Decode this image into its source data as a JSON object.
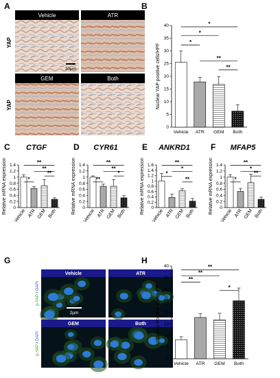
{
  "panel_labels": [
    "A",
    "B",
    "C",
    "D",
    "E",
    "F",
    "G",
    "H"
  ],
  "panel_a": {
    "tiles": [
      "Vehicle",
      "ATR",
      "GEM",
      "Both"
    ],
    "row_label": "YAP",
    "scale_bar": "30μm"
  },
  "panel_g": {
    "tiles": [
      "Vehicle",
      "ATR",
      "GEM",
      "Both"
    ],
    "side_label_green": "p-YAP",
    "side_label_sep": " / ",
    "side_label_blue": "DAPI",
    "scale_bar": "2μm"
  },
  "colors": {
    "atr": "#a9a9a9",
    "vehicle": "#ffffff",
    "ihc_bg": "#ead9cf",
    "if_bg": "#06121a",
    "tile_header": "#1a1a8c"
  },
  "chart_data": [
    {
      "id": "B",
      "type": "bar",
      "categories": [
        "Vehicle",
        "ATR",
        "GEM",
        "Both"
      ],
      "values": [
        25.5,
        17.8,
        16.8,
        6.3
      ],
      "errors": [
        4.5,
        1.8,
        3.0,
        2.5
      ],
      "ylabel": "Nuclear YAP positive cells/HPF",
      "ylim": [
        0,
        40
      ],
      "yticks": [
        0,
        5,
        10,
        15,
        20,
        25,
        30,
        35,
        40
      ],
      "fills": [
        "white",
        "gray",
        "hstripe",
        "dots"
      ],
      "significance": [
        {
          "from": 0,
          "to": 1,
          "label": "*"
        },
        {
          "from": 0,
          "to": 2,
          "label": "*"
        },
        {
          "from": 0,
          "to": 3,
          "label": "*"
        },
        {
          "from": 1,
          "to": 3,
          "label": "**"
        },
        {
          "from": 2,
          "to": 3,
          "label": "**"
        }
      ]
    },
    {
      "id": "C",
      "type": "bar",
      "title": "CTGF",
      "categories": [
        "Vehicle",
        "ATR",
        "GEM",
        "Both"
      ],
      "values": [
        1.0,
        0.63,
        0.72,
        0.27
      ],
      "errors": [
        0.08,
        0.06,
        0.2,
        0.05
      ],
      "ylabel": "Relative mRNA expression",
      "ylim": [
        0,
        1.4
      ],
      "yticks": [
        0,
        0.2,
        0.4,
        0.6,
        0.8,
        1,
        1.2,
        1.4
      ],
      "significance": [
        {
          "from": 0,
          "to": 1,
          "label": "*"
        },
        {
          "from": 0,
          "to": 3,
          "label": "**"
        },
        {
          "from": 1,
          "to": 3,
          "label": "**"
        },
        {
          "from": 2,
          "to": 3,
          "label": "**"
        }
      ]
    },
    {
      "id": "D",
      "type": "bar",
      "title": "CYR61",
      "categories": [
        "Vehicle",
        "ATR",
        "GEM",
        "Both"
      ],
      "values": [
        1.0,
        0.7,
        0.7,
        0.32
      ],
      "errors": [
        0.04,
        0.07,
        0.22,
        0.07
      ],
      "ylabel": "Relative mRNA expression",
      "ylim": [
        0,
        1.4
      ],
      "yticks": [
        0,
        0.2,
        0.4,
        0.6,
        0.8,
        1,
        1.2,
        1.4
      ],
      "significance": [
        {
          "from": 0,
          "to": 1,
          "label": "**"
        },
        {
          "from": 0,
          "to": 3,
          "label": "**"
        },
        {
          "from": 1,
          "to": 3,
          "label": "**"
        },
        {
          "from": 2,
          "to": 3,
          "label": "*"
        }
      ]
    },
    {
      "id": "E",
      "type": "bar",
      "title": "ANKRD1",
      "categories": [
        "Vehicle",
        "ATR",
        "GEM",
        "Both"
      ],
      "values": [
        1.0,
        0.38,
        0.63,
        0.24
      ],
      "errors": [
        0.28,
        0.12,
        0.08,
        0.1
      ],
      "ylabel": "Relative mRNA expression",
      "ylim": [
        0,
        1.6
      ],
      "yticks": [
        0,
        0.2,
        0.4,
        0.6,
        0.8,
        1,
        1.2,
        1.4,
        1.6
      ],
      "significance": [
        {
          "from": 0,
          "to": 1,
          "label": "*"
        },
        {
          "from": 0,
          "to": 3,
          "label": "**"
        },
        {
          "from": 1,
          "to": 3,
          "label": "*"
        },
        {
          "from": 2,
          "to": 3,
          "label": "**"
        }
      ]
    },
    {
      "id": "F",
      "type": "bar",
      "title": "MFAP5",
      "categories": [
        "Vehicle",
        "ATR",
        "GEM",
        "Both"
      ],
      "values": [
        1.0,
        0.53,
        0.82,
        0.27
      ],
      "errors": [
        0.08,
        0.1,
        0.28,
        0.07
      ],
      "ylabel": "Relative mRNA expression",
      "ylim": [
        0,
        1.4
      ],
      "yticks": [
        0,
        0.2,
        0.4,
        0.6,
        0.8,
        1,
        1.2,
        1.4
      ],
      "significance": [
        {
          "from": 0,
          "to": 1,
          "label": "*"
        },
        {
          "from": 0,
          "to": 3,
          "label": "**"
        },
        {
          "from": 1,
          "to": 3,
          "label": "*"
        },
        {
          "from": 2,
          "to": 3,
          "label": "**"
        }
      ]
    },
    {
      "id": "H",
      "type": "bar",
      "categories": [
        "Vehicle",
        "ATR",
        "GEM",
        "Both"
      ],
      "values": [
        8.2,
        17.8,
        16.8,
        25.0
      ],
      "errors": [
        1.3,
        1.7,
        2.8,
        5.5
      ],
      "ylabel": "Cytoso Positive cells/HPF",
      "ylim": [
        0,
        40
      ],
      "yticks": [
        0,
        5,
        10,
        15,
        20,
        25,
        30,
        35,
        40
      ],
      "fills": [
        "white",
        "gray",
        "hstripe",
        "dots"
      ],
      "significance": [
        {
          "from": 0,
          "to": 1,
          "label": "**"
        },
        {
          "from": 0,
          "to": 2,
          "label": "**"
        },
        {
          "from": 0,
          "to": 3,
          "label": "**"
        },
        {
          "from": 2,
          "to": 3,
          "label": "*"
        }
      ]
    }
  ]
}
